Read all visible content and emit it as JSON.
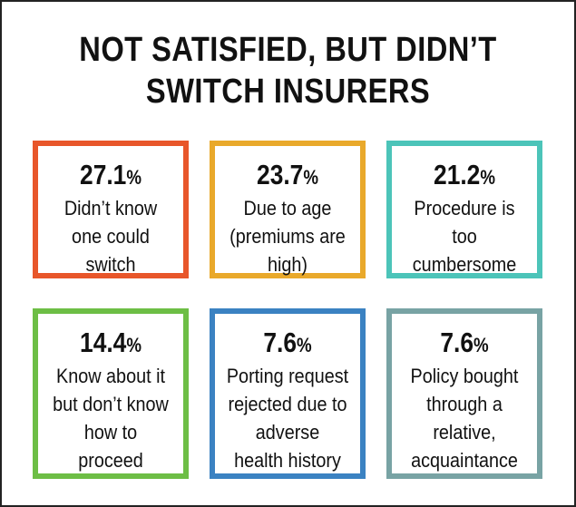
{
  "title": {
    "line1": "NOT SATISFIED, BUT DIDN’T",
    "line2": "SWITCH INSURERS"
  },
  "cards": [
    {
      "value": "27.1",
      "unit": "%",
      "lines": [
        "Didn’t know",
        "one could",
        "switch"
      ],
      "color": "#E8562A"
    },
    {
      "value": "23.7",
      "unit": "%",
      "lines": [
        "Due to age",
        "(premiums are",
        "high)"
      ],
      "color": "#E9A92B"
    },
    {
      "value": "21.2",
      "unit": "%",
      "lines": [
        "Procedure is",
        "too",
        "cumbersome"
      ],
      "color": "#4CC4B9"
    },
    {
      "value": "14.4",
      "unit": "%",
      "lines": [
        "Know about it",
        "but don’t know",
        "how to",
        "proceed"
      ],
      "color": "#6DBE45"
    },
    {
      "value": "7.6",
      "unit": "%",
      "lines": [
        "Porting request",
        "rejected due to",
        "adverse",
        "health history"
      ],
      "color": "#3B82C2"
    },
    {
      "value": "7.6",
      "unit": "%",
      "lines": [
        "Policy bought",
        "through a",
        "relative,",
        "acquaintance"
      ],
      "color": "#78A3A4"
    }
  ]
}
